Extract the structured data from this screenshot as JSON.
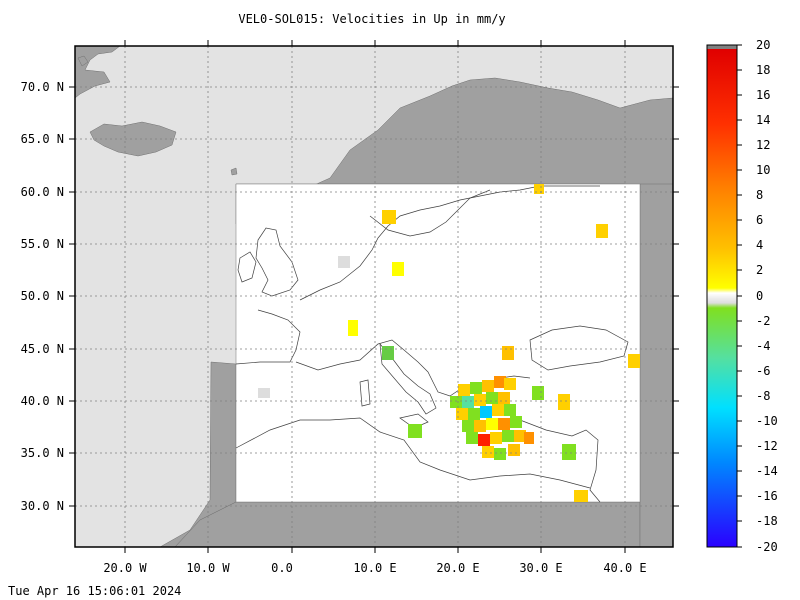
{
  "title": "VEL0-SOL015: Velocities in Up in mm/y",
  "timestamp": "Tue Apr 16 15:06:01 2024",
  "lat_labels": [
    "70.0 N",
    "65.0 N",
    "60.0 N",
    "55.0 N",
    "50.0 N",
    "45.0 N",
    "40.0 N",
    "35.0 N",
    "30.0 N"
  ],
  "lon_labels": [
    "20.0 W",
    "10.0 W",
    "0.0",
    "10.0 E",
    "20.0 E",
    "30.0 E",
    "40.0 E"
  ],
  "colorbar": {
    "labels": [
      "20",
      "18",
      "16",
      "14",
      "12",
      "10",
      "8",
      "6",
      "4",
      "2",
      "0",
      "-2",
      "-4",
      "-6",
      "-8",
      "-10",
      "-12",
      "-14",
      "-16",
      "-18",
      "-20"
    ],
    "range": [
      -20,
      20
    ],
    "colors": [
      "#2a00ff",
      "#0088ff",
      "#00e0ff",
      "#55e0a0",
      "#80e020",
      "#ffff00",
      "#ffc000",
      "#ff8000",
      "#ff3000",
      "#e00000"
    ]
  },
  "map_extent": {
    "lon": [
      -25,
      47
    ],
    "lat": [
      26,
      74
    ]
  },
  "colors": {
    "land": "#a0a0a0",
    "sea": "#e3e3e3",
    "data_area": "#ffffff",
    "grid": "#808080"
  }
}
